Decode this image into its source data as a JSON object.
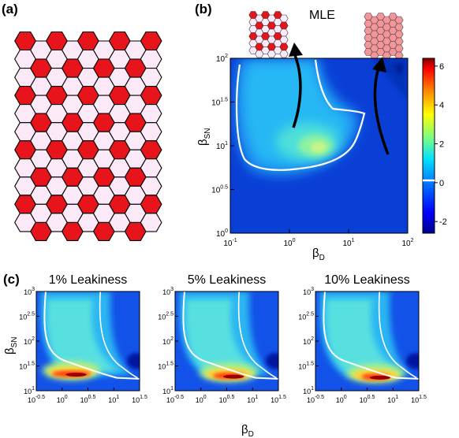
{
  "panels": {
    "a": {
      "label": "(a)",
      "rows": 11,
      "cols": 9
    },
    "b": {
      "label": "(b)",
      "title": "MLE",
      "xlabel": "β",
      "xlabel_sub": "D",
      "ylabel": "β",
      "ylabel_sub": "SN",
      "xticks": [
        {
          "base": "10",
          "exp": "-1"
        },
        {
          "base": "10",
          "exp": "0"
        },
        {
          "base": "10",
          "exp": "1"
        },
        {
          "base": "10",
          "exp": "2"
        }
      ],
      "yticks": [
        {
          "base": "10",
          "exp": "0"
        },
        {
          "base": "10",
          "exp": "0.5"
        },
        {
          "base": "10",
          "exp": "1"
        },
        {
          "base": "10",
          "exp": "1.5"
        },
        {
          "base": "10",
          "exp": "2"
        }
      ],
      "colorbar": {
        "ticks": [
          "6",
          "4",
          "2",
          "0",
          "-2"
        ],
        "range": [
          -2.6,
          6.4
        ]
      }
    },
    "c": {
      "label": "(c)",
      "xlabel": "β",
      "xlabel_sub": "D",
      "ylabel": "β",
      "ylabel_sub": "SN",
      "xticks": [
        {
          "base": "10",
          "exp": "-0.5"
        },
        {
          "base": "10",
          "exp": "0"
        },
        {
          "base": "10",
          "exp": "0.5"
        },
        {
          "base": "10",
          "exp": "1"
        },
        {
          "base": "10",
          "exp": "1.5"
        }
      ],
      "yticks": [
        {
          "base": "10",
          "exp": "1"
        },
        {
          "base": "10",
          "exp": "1.5"
        },
        {
          "base": "10",
          "exp": "2"
        },
        {
          "base": "10",
          "exp": "2.5"
        },
        {
          "base": "10",
          "exp": "3"
        }
      ],
      "subplots": [
        {
          "title": "1% Leakiness"
        },
        {
          "title": "5% Leakiness"
        },
        {
          "title": "10% Leakiness"
        }
      ]
    }
  },
  "colors": {
    "red": "#e8141c",
    "pale": "#fbe9f8",
    "salmon": "#f4959a",
    "edge": "#000000"
  }
}
